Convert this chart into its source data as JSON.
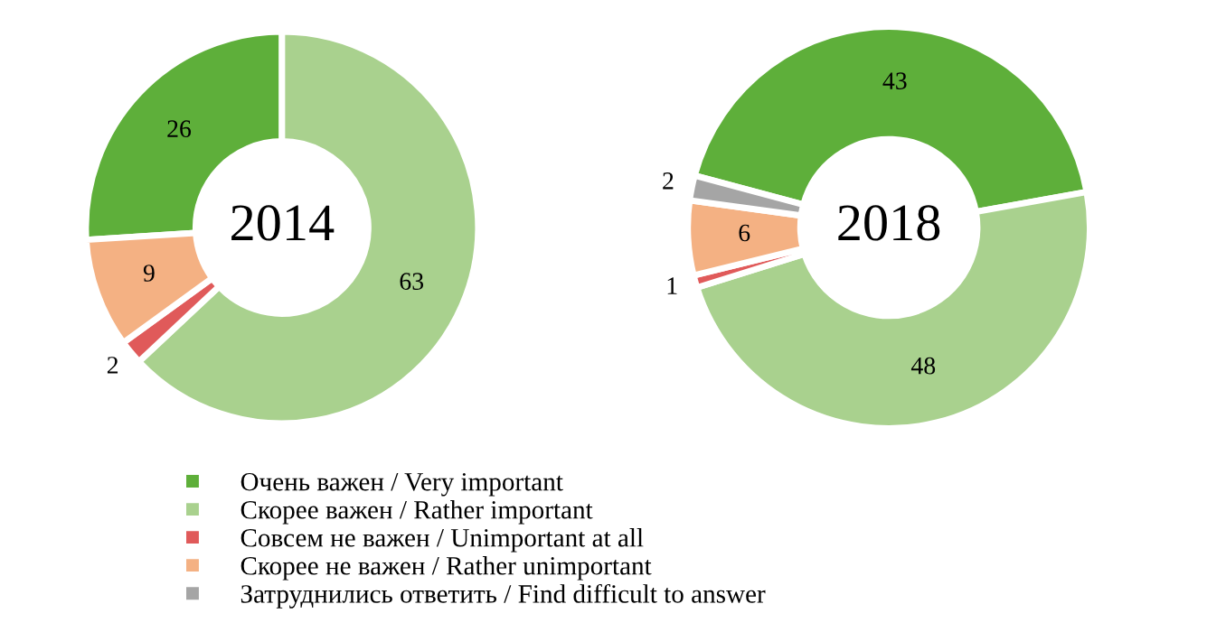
{
  "chart_data": [
    {
      "type": "donut",
      "title": "2014",
      "categories": [
        "Очень важен / Very important",
        "Скорее важен / Rather important",
        "Совсем не важен / Unimportant at all",
        "Скорее не важен / Rather unimportant"
      ],
      "values": [
        26,
        63,
        2,
        9
      ],
      "colors": [
        "#5eaf3a",
        "#a9d18e",
        "#e05a5a",
        "#f4b183"
      ],
      "data_labels": true,
      "legend": "bottom"
    },
    {
      "type": "donut",
      "title": "2018",
      "categories": [
        null,
        null,
        null,
        null,
        "Затруднились ответить / Find difficult to answer"
      ],
      "values": [
        43,
        48,
        1,
        6,
        2
      ],
      "colors": [
        "#5eaf3a",
        "#a9d18e",
        "#e05a5a",
        "#f4b183",
        "#a5a5a5"
      ],
      "data_labels": true,
      "legend": "bottom"
    }
  ]
}
